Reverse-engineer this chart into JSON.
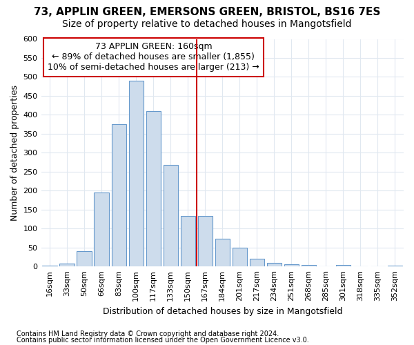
{
  "title_line1": "73, APPLIN GREEN, EMERSONS GREEN, BRISTOL, BS16 7ES",
  "title_line2": "Size of property relative to detached houses in Mangotsfield",
  "xlabel": "Distribution of detached houses by size in Mangotsfield",
  "ylabel": "Number of detached properties",
  "bar_color": "#cddcec",
  "bar_edge_color": "#6699cc",
  "categories": [
    "16sqm",
    "33sqm",
    "50sqm",
    "66sqm",
    "83sqm",
    "100sqm",
    "117sqm",
    "133sqm",
    "150sqm",
    "167sqm",
    "184sqm",
    "201sqm",
    "217sqm",
    "234sqm",
    "251sqm",
    "268sqm",
    "285sqm",
    "301sqm",
    "318sqm",
    "335sqm",
    "352sqm"
  ],
  "values": [
    3,
    8,
    40,
    195,
    375,
    490,
    410,
    268,
    133,
    133,
    73,
    50,
    20,
    10,
    6,
    5,
    0,
    4,
    0,
    0,
    2
  ],
  "ylim": [
    0,
    600
  ],
  "yticks": [
    0,
    50,
    100,
    150,
    200,
    250,
    300,
    350,
    400,
    450,
    500,
    550,
    600
  ],
  "vline_x": 8.5,
  "vline_color": "#cc0000",
  "annotation_text": "73 APPLIN GREEN: 160sqm\n← 89% of detached houses are smaller (1,855)\n10% of semi-detached houses are larger (213) →",
  "annotation_box_edge": "#cc0000",
  "footnote1": "Contains HM Land Registry data © Crown copyright and database right 2024.",
  "footnote2": "Contains public sector information licensed under the Open Government Licence v3.0.",
  "background_color": "#ffffff",
  "grid_color": "#e0e8f0",
  "title_fontsize": 11,
  "subtitle_fontsize": 10,
  "xlabel_fontsize": 9,
  "ylabel_fontsize": 9,
  "tick_fontsize": 8,
  "annotation_fontsize": 9,
  "footnote_fontsize": 7
}
